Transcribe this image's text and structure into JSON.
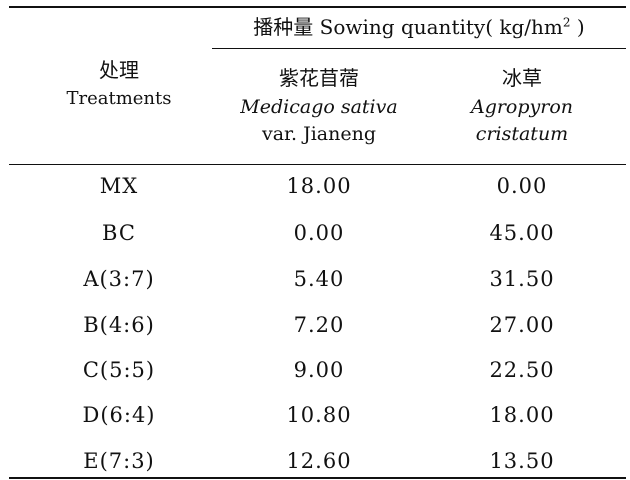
{
  "table": {
    "span_header": {
      "prefix": "播种量 Sowing quantity",
      "unit_open": "( kg/hm",
      "unit_sup": "2",
      "unit_close": " )"
    },
    "col_treatment": {
      "zh": "处理",
      "en": "Treatments"
    },
    "col_medicago": {
      "zh": "紫花苜蓿",
      "latin": "Medicago sativa",
      "var": "var. Jianeng"
    },
    "col_agropyron": {
      "zh": "冰草",
      "latin1": "Agropyron",
      "latin2": "cristatum"
    },
    "rows": [
      {
        "treatment": "MX",
        "medicago": "18.00",
        "agropyron": "0.00"
      },
      {
        "treatment": "BC",
        "medicago": "0.00",
        "agropyron": "45.00"
      },
      {
        "treatment": "A(3:7)",
        "medicago": "5.40",
        "agropyron": "31.50"
      },
      {
        "treatment": "B(4:6)",
        "medicago": "7.20",
        "agropyron": "27.00"
      },
      {
        "treatment": "C(5:5)",
        "medicago": "9.00",
        "agropyron": "22.50"
      },
      {
        "treatment": "D(6:4)",
        "medicago": "10.80",
        "agropyron": "18.00"
      },
      {
        "treatment": "E(7:3)",
        "medicago": "12.60",
        "agropyron": "13.50"
      }
    ]
  }
}
